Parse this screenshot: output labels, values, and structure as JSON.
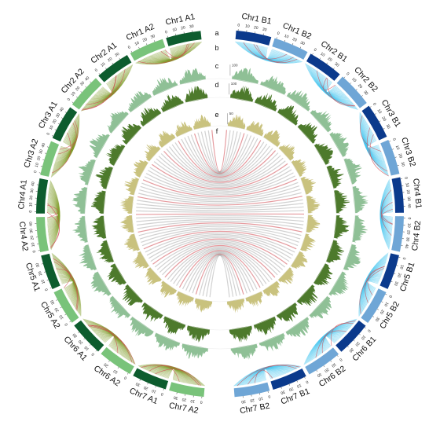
{
  "colors": {
    "a_dark": "#0d5c2e",
    "a_light": "#79c37a",
    "a_links": "#7f9d2a",
    "b_dark": "#0b3a8c",
    "b_light": "#6fa6d6",
    "b_links": "#44c4ef",
    "red_links": "#d0474f",
    "gray_links": "#9a9a9a",
    "track_c": "#8fc096",
    "track_d": "#4d7a2c",
    "track_e": "#c9c27e"
  },
  "track_labels": [
    "a",
    "b",
    "c",
    "d",
    "e",
    "f"
  ],
  "scale_labels": {
    "c": [
      "100"
    ],
    "d": [
      "100"
    ],
    "e": [
      "50"
    ]
  },
  "chromosomes_a": [
    {
      "label": "Chr1 A1",
      "ticks": [
        "0",
        "10",
        "20",
        "30"
      ]
    },
    {
      "label": "Chr1 A2",
      "ticks": [
        "0",
        "10",
        "20",
        "30"
      ]
    },
    {
      "label": "Chr2 A1",
      "ticks": [
        "0",
        "10",
        "20",
        "30"
      ]
    },
    {
      "label": "Chr2 A2",
      "ticks": [
        "0",
        "10",
        "20",
        "30",
        "40"
      ]
    },
    {
      "label": "Chr3 A1",
      "ticks": [
        "0",
        "10",
        "20",
        "30",
        "40"
      ]
    },
    {
      "label": "Chr3 A2",
      "ticks": [
        "0",
        "10",
        "20",
        "30",
        "40"
      ]
    },
    {
      "label": "Chr4 A1",
      "ticks": [
        "0",
        "10",
        "20",
        "30",
        "40"
      ]
    },
    {
      "label": "Chr4 A2",
      "ticks": [
        "0",
        "10",
        "20",
        "30",
        "40"
      ]
    },
    {
      "label": "Chr5 A1",
      "ticks": [
        "0",
        "10",
        "20",
        "30"
      ]
    },
    {
      "label": "Chr5 A2",
      "ticks": [
        "0",
        "10",
        "20",
        "30"
      ]
    },
    {
      "label": "Chr6 A1",
      "ticks": [
        "0",
        "10",
        "20",
        "30"
      ]
    },
    {
      "label": "Chr6 A2",
      "ticks": [
        "0",
        "10",
        "20"
      ]
    },
    {
      "label": "Chr7 A1",
      "ticks": [
        "0",
        "10",
        "20",
        "30"
      ]
    },
    {
      "label": "Chr7 A2",
      "ticks": [
        "0",
        "10",
        "20",
        "30"
      ]
    }
  ],
  "chromosomes_b": [
    {
      "label": "Chr1 B1",
      "ticks": [
        "0",
        "10",
        "20",
        "30"
      ]
    },
    {
      "label": "Chr1 B2",
      "ticks": [
        "0",
        "10",
        "20",
        "30"
      ]
    },
    {
      "label": "Chr2 B1",
      "ticks": [
        "0",
        "10",
        "20",
        "30"
      ]
    },
    {
      "label": "Chr2 B2",
      "ticks": [
        "0",
        "10",
        "20",
        "30"
      ]
    },
    {
      "label": "Chr3 B1",
      "ticks": [
        "0",
        "10",
        "20",
        "30"
      ]
    },
    {
      "label": "Chr3 B2",
      "ticks": [
        "0",
        "10",
        "20",
        "30"
      ]
    },
    {
      "label": "Chr4 B1",
      "ticks": [
        "0",
        "10",
        "20",
        "30",
        "40"
      ]
    },
    {
      "label": "Chr4 B2",
      "ticks": [
        "0",
        "10",
        "20",
        "30",
        "40"
      ]
    },
    {
      "label": "Chr5 B1",
      "ticks": [
        "0",
        "10",
        "20",
        "30"
      ]
    },
    {
      "label": "Chr5 B2",
      "ticks": [
        "0",
        "10",
        "20",
        "30"
      ]
    },
    {
      "label": "Chr6 B1",
      "ticks": [
        "0",
        "10",
        "20",
        "30"
      ]
    },
    {
      "label": "Chr6 B2",
      "ticks": [
        "0",
        "10",
        "20",
        "30"
      ]
    },
    {
      "label": "Chr7 B1",
      "ticks": [
        "0",
        "10",
        "20",
        "30"
      ]
    },
    {
      "label": "Chr7 B2",
      "ticks": [
        "0",
        "10",
        "20",
        "30"
      ]
    }
  ]
}
